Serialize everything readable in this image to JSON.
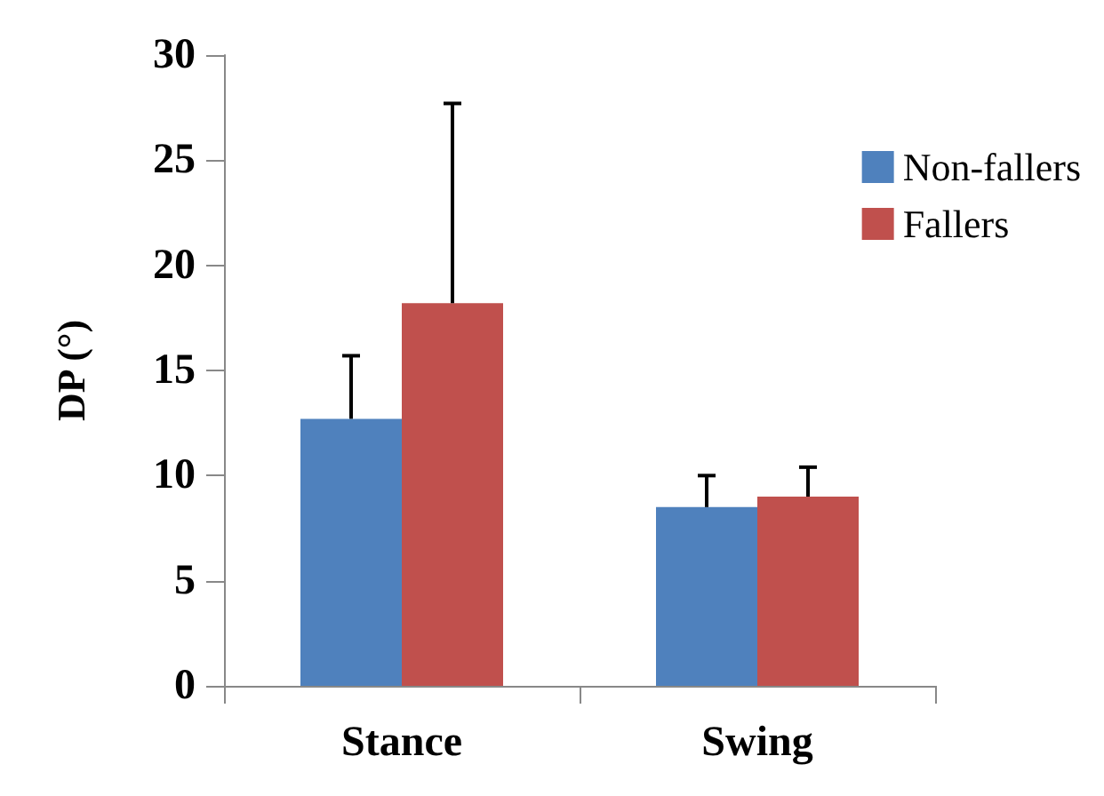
{
  "chart_data": {
    "type": "bar",
    "ylabel": "DP (°)",
    "categories": [
      "Stance",
      "Swing"
    ],
    "series": [
      {
        "name": "Non-fallers",
        "color": "#4f81bd",
        "values": [
          12.7,
          8.5
        ],
        "errors": [
          [
            12.7,
            15.7
          ],
          [
            8.5,
            10.0
          ]
        ]
      },
      {
        "name": "Fallers",
        "color": "#c0504d",
        "values": [
          18.2,
          9.0
        ],
        "errors": [
          [
            18.2,
            27.7
          ],
          [
            9.0,
            10.4
          ]
        ]
      }
    ],
    "ylim": [
      0,
      30
    ],
    "yticks": [
      0,
      5,
      10,
      15,
      20,
      25,
      30
    ],
    "grid": false,
    "legend": "right"
  }
}
